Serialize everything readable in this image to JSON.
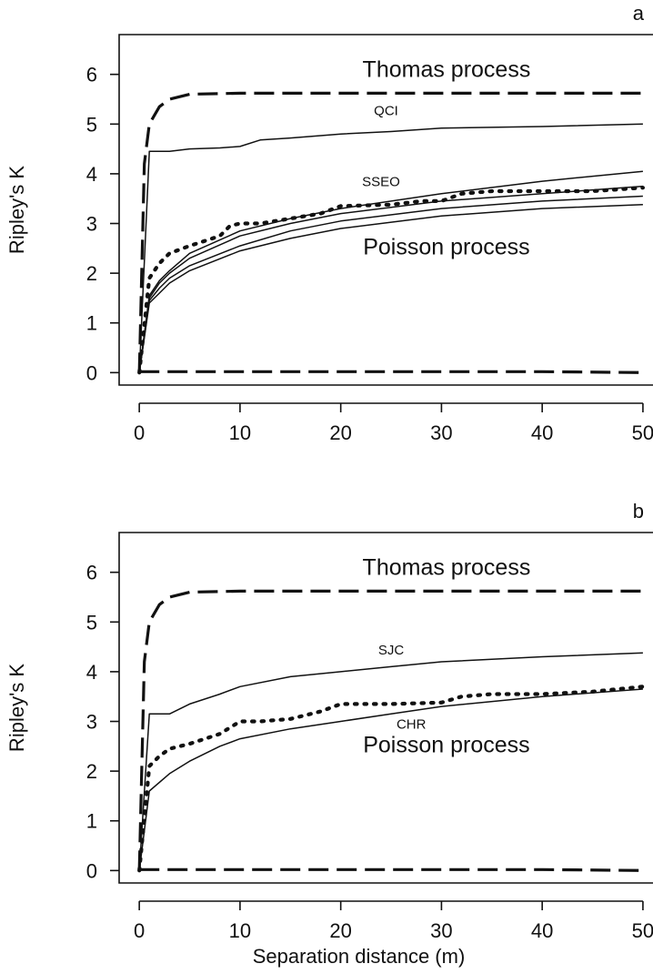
{
  "chart_data": [
    {
      "type": "line",
      "panel_label": "a",
      "xlabel": "",
      "ylabel": "Ripley's K",
      "xlim": [
        -2,
        51
      ],
      "ylim": [
        -0.25,
        6.8
      ],
      "xticks": [
        0,
        10,
        20,
        30,
        40,
        50
      ],
      "yticks": [
        0,
        1,
        2,
        3,
        4,
        5,
        6
      ],
      "grid": false,
      "annotations": [
        {
          "text": "Thomas process",
          "x": 30.5,
          "y": 5.95,
          "size": "large"
        },
        {
          "text": "QCI",
          "x": 24.5,
          "y": 5.18,
          "size": "small"
        },
        {
          "text": "SSEO",
          "x": 24.0,
          "y": 3.75,
          "size": "small"
        },
        {
          "text": "Poisson process",
          "x": 30.5,
          "y": 2.38,
          "size": "large"
        }
      ],
      "series": [
        {
          "style": "dashed-thick",
          "x": [
            0,
            0.5,
            1,
            2,
            3,
            5,
            10,
            20,
            30,
            40,
            50
          ],
          "y": [
            0,
            4.2,
            5.0,
            5.35,
            5.5,
            5.6,
            5.62,
            5.62,
            5.62,
            5.62,
            5.62
          ]
        },
        {
          "style": "solid",
          "x": [
            0,
            1,
            3,
            5,
            8,
            10,
            12,
            15,
            20,
            25,
            30,
            40,
            50
          ],
          "y": [
            0,
            4.45,
            4.45,
            4.5,
            4.52,
            4.55,
            4.68,
            4.72,
            4.8,
            4.85,
            4.92,
            4.95,
            5.0
          ]
        },
        {
          "style": "solid",
          "x": [
            0,
            1,
            2,
            3,
            5,
            10,
            15,
            20,
            30,
            40,
            50
          ],
          "y": [
            0,
            1.55,
            1.85,
            2.05,
            2.4,
            2.85,
            3.1,
            3.3,
            3.6,
            3.85,
            4.05
          ]
        },
        {
          "style": "solid",
          "x": [
            0,
            1,
            2,
            3,
            5,
            10,
            15,
            20,
            30,
            40,
            50
          ],
          "y": [
            0,
            1.5,
            1.8,
            2.0,
            2.3,
            2.75,
            3.0,
            3.2,
            3.45,
            3.6,
            3.75
          ]
        },
        {
          "style": "solid",
          "x": [
            0,
            1,
            2,
            3,
            5,
            10,
            15,
            20,
            30,
            40,
            50
          ],
          "y": [
            0,
            1.45,
            1.7,
            1.9,
            2.15,
            2.55,
            2.85,
            3.05,
            3.3,
            3.45,
            3.55
          ]
        },
        {
          "style": "solid",
          "x": [
            0,
            1,
            2,
            3,
            5,
            10,
            15,
            20,
            30,
            40,
            50
          ],
          "y": [
            0,
            1.4,
            1.6,
            1.8,
            2.05,
            2.45,
            2.7,
            2.9,
            3.15,
            3.3,
            3.38
          ]
        },
        {
          "style": "dotted-thick",
          "x": [
            0,
            1,
            2,
            3,
            5,
            8,
            9,
            10,
            12,
            15,
            18,
            20,
            25,
            28,
            30,
            32,
            35,
            40,
            45,
            50
          ],
          "y": [
            0,
            1.9,
            2.2,
            2.4,
            2.55,
            2.75,
            2.95,
            3.0,
            3.0,
            3.1,
            3.2,
            3.35,
            3.38,
            3.45,
            3.45,
            3.6,
            3.65,
            3.65,
            3.65,
            3.72
          ]
        },
        {
          "style": "dashed-thick",
          "x": [
            0,
            10,
            20,
            30,
            40,
            50
          ],
          "y": [
            0.02,
            0.02,
            0.02,
            0.02,
            0.02,
            0.0
          ]
        }
      ]
    },
    {
      "type": "line",
      "panel_label": "b",
      "xlabel": "Separation distance (m)",
      "ylabel": "Ripley's K",
      "xlim": [
        -2,
        51
      ],
      "ylim": [
        -0.25,
        6.8
      ],
      "xticks": [
        0,
        10,
        20,
        30,
        40,
        50
      ],
      "yticks": [
        0,
        1,
        2,
        3,
        4,
        5,
        6
      ],
      "grid": false,
      "annotations": [
        {
          "text": "Thomas process",
          "x": 30.5,
          "y": 5.95,
          "size": "large"
        },
        {
          "text": "SJC",
          "x": 25.0,
          "y": 4.35,
          "size": "small"
        },
        {
          "text": "CHR",
          "x": 27.0,
          "y": 2.85,
          "size": "small"
        },
        {
          "text": "Poisson process",
          "x": 30.5,
          "y": 2.38,
          "size": "large"
        }
      ],
      "series": [
        {
          "style": "dashed-thick",
          "x": [
            0,
            0.5,
            1,
            2,
            3,
            5,
            10,
            20,
            30,
            40,
            50
          ],
          "y": [
            0,
            4.2,
            5.0,
            5.35,
            5.5,
            5.6,
            5.62,
            5.62,
            5.62,
            5.62,
            5.62
          ]
        },
        {
          "style": "solid",
          "x": [
            0,
            1,
            3,
            5,
            8,
            10,
            15,
            20,
            25,
            30,
            40,
            50
          ],
          "y": [
            0,
            3.15,
            3.15,
            3.35,
            3.55,
            3.7,
            3.9,
            4.0,
            4.1,
            4.2,
            4.3,
            4.38
          ]
        },
        {
          "style": "solid",
          "x": [
            0,
            1,
            3,
            5,
            8,
            10,
            15,
            20,
            25,
            30,
            40,
            50
          ],
          "y": [
            0,
            1.6,
            1.95,
            2.2,
            2.5,
            2.65,
            2.85,
            3.0,
            3.15,
            3.3,
            3.5,
            3.65
          ]
        },
        {
          "style": "dotted-thick",
          "x": [
            0,
            1,
            2,
            3,
            5,
            8,
            10,
            12,
            15,
            18,
            20,
            25,
            30,
            32,
            35,
            40,
            45,
            50
          ],
          "y": [
            0,
            2.1,
            2.3,
            2.45,
            2.55,
            2.75,
            3.0,
            3.0,
            3.05,
            3.2,
            3.35,
            3.35,
            3.38,
            3.5,
            3.55,
            3.55,
            3.6,
            3.7
          ]
        },
        {
          "style": "dashed-thick",
          "x": [
            0,
            10,
            20,
            30,
            40,
            50
          ],
          "y": [
            0.02,
            0.02,
            0.02,
            0.02,
            0.02,
            0.0
          ]
        }
      ]
    }
  ]
}
